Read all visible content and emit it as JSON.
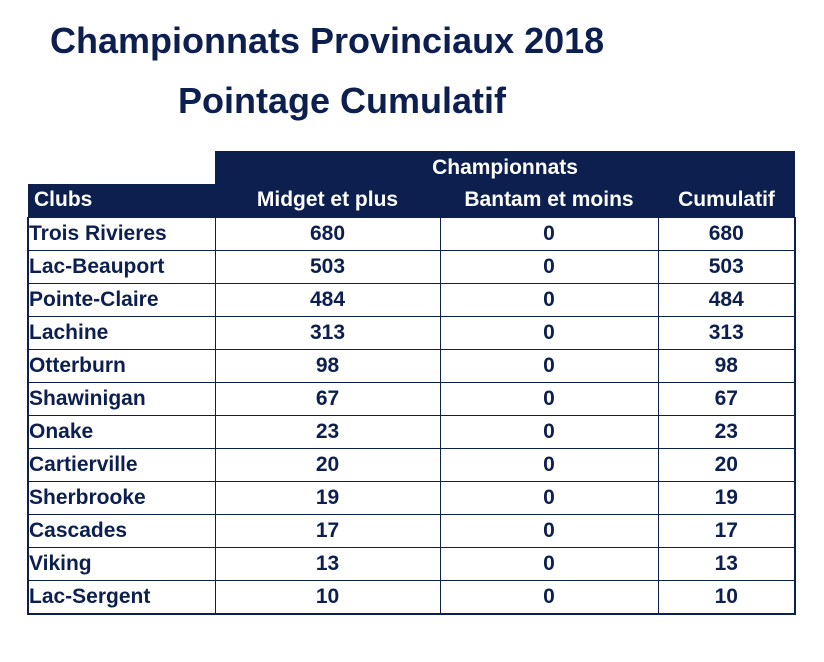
{
  "title": "Championnats Provinciaux 2018",
  "subtitle": "Pointage Cumulatif",
  "table": {
    "group_header": "Championnats",
    "columns": [
      "Clubs",
      "Midget et plus",
      "Bantam et moins",
      "Cumulatif"
    ],
    "rows": [
      {
        "club": "Trois Rivieres",
        "midget": "680",
        "bantam": "0",
        "cumulatif": "680"
      },
      {
        "club": "Lac-Beauport",
        "midget": "503",
        "bantam": "0",
        "cumulatif": "503"
      },
      {
        "club": "Pointe-Claire",
        "midget": "484",
        "bantam": "0",
        "cumulatif": "484"
      },
      {
        "club": "Lachine",
        "midget": "313",
        "bantam": "0",
        "cumulatif": "313"
      },
      {
        "club": "Otterburn",
        "midget": "98",
        "bantam": "0",
        "cumulatif": "98"
      },
      {
        "club": "Shawinigan",
        "midget": "67",
        "bantam": "0",
        "cumulatif": "67"
      },
      {
        "club": "Onake",
        "midget": "23",
        "bantam": "0",
        "cumulatif": "23"
      },
      {
        "club": "Cartierville",
        "midget": "20",
        "bantam": "0",
        "cumulatif": "20"
      },
      {
        "club": "Sherbrooke",
        "midget": "19",
        "bantam": "0",
        "cumulatif": "19"
      },
      {
        "club": "Cascades",
        "midget": "17",
        "bantam": "0",
        "cumulatif": "17"
      },
      {
        "club": "Viking",
        "midget": "13",
        "bantam": "0",
        "cumulatif": "13"
      },
      {
        "club": "Lac-Sergent",
        "midget": "10",
        "bantam": "0",
        "cumulatif": "10"
      }
    ]
  },
  "colors": {
    "header_bg": "#0d1f4f",
    "header_text": "#ffffff",
    "text": "#0d1f4f"
  }
}
